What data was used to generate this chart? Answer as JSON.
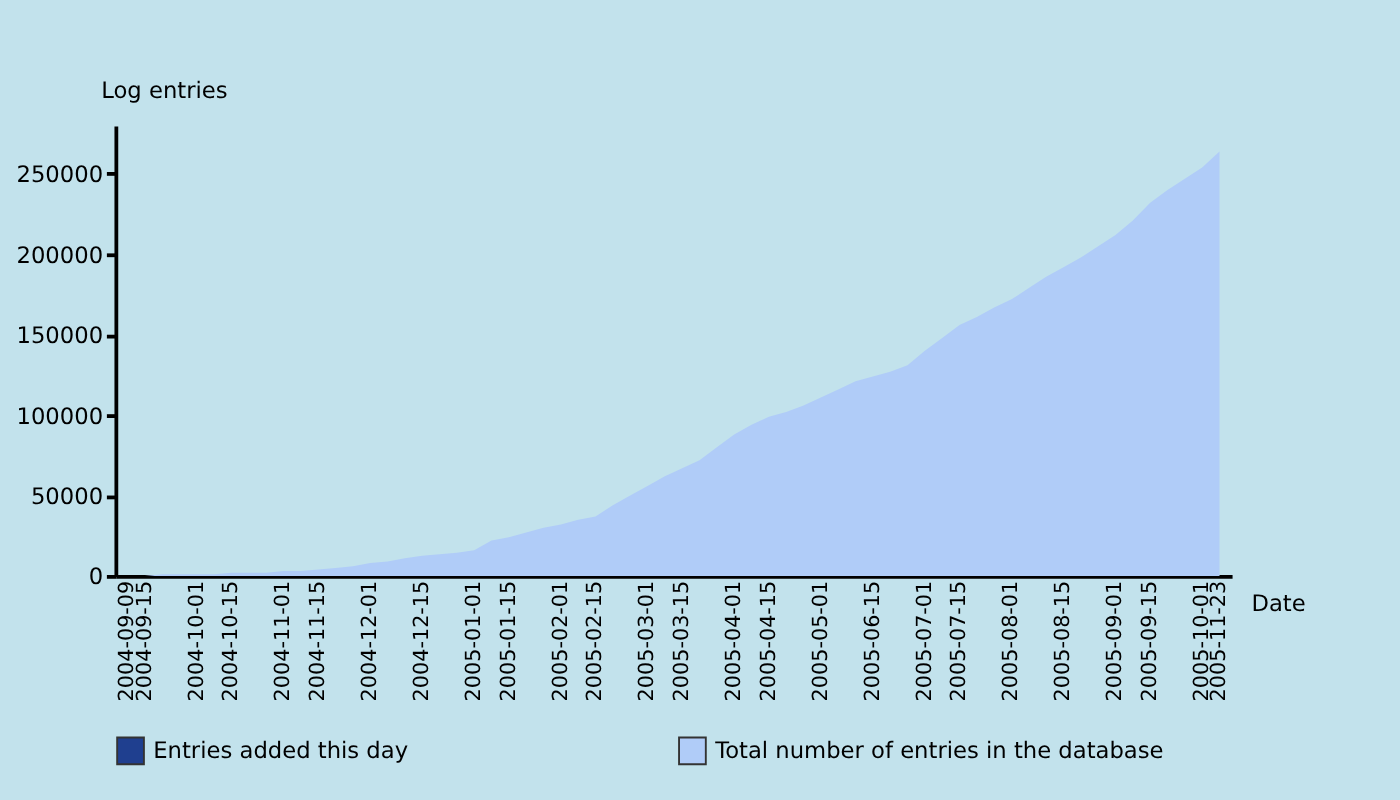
{
  "chart_data": {
    "type": "area",
    "xlabel": "Date",
    "ylabel": "Log entries",
    "categories": [
      "2004-09-09",
      "2004-09-15",
      null,
      null,
      "2004-10-01",
      null,
      "2004-10-15",
      null,
      null,
      "2004-11-01",
      null,
      "2004-11-15",
      null,
      null,
      "2004-12-01",
      null,
      null,
      "2004-12-15",
      null,
      null,
      "2005-01-01",
      null,
      "2005-01-15",
      null,
      null,
      "2005-02-01",
      null,
      "2005-02-15",
      null,
      null,
      "2005-03-01",
      null,
      "2005-03-15",
      null,
      null,
      "2005-04-01",
      null,
      "2005-04-15",
      null,
      null,
      "2005-05-01",
      null,
      null,
      "2005-06-15",
      null,
      null,
      "2005-07-01",
      null,
      "2005-07-15",
      null,
      null,
      "2005-08-01",
      null,
      null,
      "2005-08-15",
      null,
      null,
      "2005-09-01",
      null,
      "2005-09-15",
      null,
      null,
      "2005-10-01",
      "2005-11-23"
    ],
    "series": [
      {
        "name": "Entries added this day",
        "color": "#1f3f8f",
        "type": "bar",
        "values": [
          null,
          null,
          null,
          null,
          null,
          null,
          null,
          null,
          null,
          null,
          null,
          null,
          null,
          null,
          null,
          null,
          null,
          null,
          null,
          null,
          null,
          null,
          null,
          null,
          null,
          null,
          null,
          null,
          null,
          null,
          null,
          null,
          null,
          null,
          null,
          null,
          null,
          null,
          null,
          null,
          null,
          null,
          null,
          null,
          null,
          null,
          null,
          null,
          null,
          null,
          null,
          null,
          null,
          null,
          null,
          null,
          null,
          null,
          null,
          null,
          null,
          null,
          null,
          null
        ]
      },
      {
        "name": "Total number of entries in the database",
        "color": "#b0ccf8",
        "values": [
          0,
          0,
          1000,
          1000,
          1000,
          1000,
          2000,
          2000,
          2000,
          3000,
          3000,
          4000,
          5000,
          6000,
          8000,
          9000,
          11000,
          12500,
          13500,
          14500,
          16000,
          22000,
          24000,
          27000,
          30000,
          32000,
          35000,
          37000,
          44000,
          50000,
          56000,
          62000,
          67000,
          72000,
          80000,
          88000,
          94000,
          99000,
          102000,
          106000,
          111000,
          116000,
          121000,
          124000,
          127000,
          131000,
          140000,
          148000,
          156000,
          161000,
          167000,
          172000,
          179000,
          186000,
          192000,
          198000,
          205000,
          212000,
          221000,
          232000,
          240000,
          247000,
          254000,
          264000
        ]
      }
    ],
    "ylim": [
      0,
      280000
    ],
    "yticks": [
      0,
      50000,
      100000,
      150000,
      200000,
      250000
    ],
    "grid": false,
    "legend": "bottom"
  }
}
